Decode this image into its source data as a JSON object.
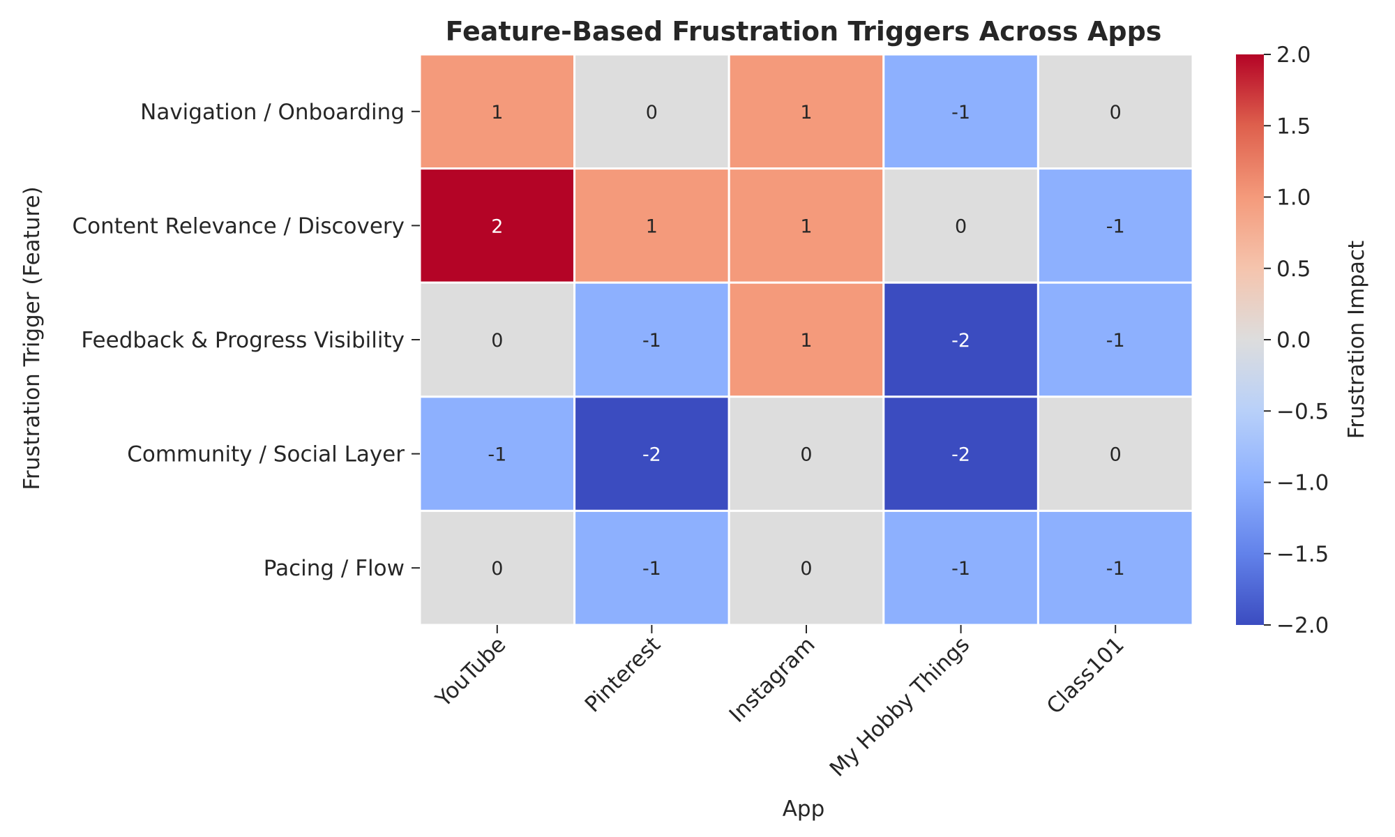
{
  "chart_data": {
    "type": "heatmap",
    "title": "Feature-Based Frustration Triggers Across Apps",
    "xlabel": "App",
    "ylabel": "Frustration Trigger (Feature)",
    "colorbar_label": "Frustration Impact",
    "colormap": "coolwarm",
    "vmin": -2,
    "vmax": 2,
    "colorbar_ticks": [
      "2.0",
      "1.5",
      "1.0",
      "0.5",
      "0.0",
      "−0.5",
      "−1.0",
      "−1.5",
      "−2.0"
    ],
    "colorbar_tick_values": [
      2.0,
      1.5,
      1.0,
      0.5,
      0.0,
      -0.5,
      -1.0,
      -1.5,
      -2.0
    ],
    "columns": [
      "YouTube",
      "Pinterest",
      "Instagram",
      "My Hobby Things",
      "Class101"
    ],
    "rows": [
      "Navigation / Onboarding",
      "Content Relevance / Discovery",
      "Feedback & Progress Visibility",
      "Community / Social Layer",
      "Pacing / Flow"
    ],
    "values": [
      [
        1,
        0,
        1,
        -1,
        0
      ],
      [
        2,
        1,
        1,
        0,
        -1
      ],
      [
        0,
        -1,
        1,
        -2,
        -1
      ],
      [
        -1,
        -2,
        0,
        -2,
        0
      ],
      [
        0,
        -1,
        0,
        -1,
        -1
      ]
    ],
    "cell_labels": [
      [
        "1",
        "0",
        "1",
        "-1",
        "0"
      ],
      [
        "2",
        "1",
        "1",
        "0",
        "-1"
      ],
      [
        "0",
        "-1",
        "1",
        "-2",
        "-1"
      ],
      [
        "-1",
        "-2",
        "0",
        "-2",
        "0"
      ],
      [
        "0",
        "-1",
        "0",
        "-1",
        "-1"
      ]
    ],
    "grid": false,
    "colorbar_position": "right"
  }
}
